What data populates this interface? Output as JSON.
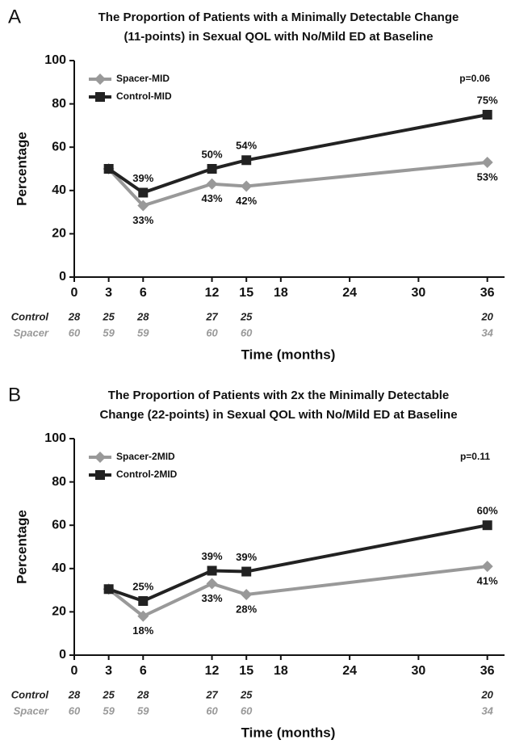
{
  "chart_data": [
    {
      "type": "line",
      "panel_label": "A",
      "title": [
        "The Proportion of Patients with a Minimally Detectable Change",
        "(11-points) in Sexual QOL with No/Mild ED at Baseline"
      ],
      "x_label": "Time (months)",
      "y_label": "Percentage",
      "annotation": "p=0.06",
      "x": [
        3,
        6,
        12,
        15,
        36
      ],
      "series": [
        {
          "name": "Spacer-MID",
          "color": "#999999",
          "marker": "diamond",
          "values": [
            50,
            33,
            43,
            42,
            53
          ],
          "value_labels": [
            null,
            "33%",
            "43%",
            "42%",
            "53%"
          ]
        },
        {
          "name": "Control-MID",
          "color": "#222222",
          "marker": "square",
          "values": [
            50,
            39,
            50,
            54,
            75
          ],
          "value_labels": [
            null,
            "39%",
            "50%",
            "54%",
            "75%"
          ]
        }
      ],
      "xlim": [
        0,
        37.5
      ],
      "xticks": [
        0,
        3,
        6,
        12,
        15,
        18,
        24,
        30,
        36
      ],
      "ylim": [
        0,
        100
      ],
      "yticks": [
        0,
        20,
        40,
        60,
        80,
        100
      ],
      "legend": "top-left",
      "risk_table": [
        {
          "name": "Control",
          "color": "#222222",
          "x": [
            0,
            3,
            6,
            12,
            15,
            36
          ],
          "counts": [
            28,
            25,
            28,
            27,
            25,
            20
          ]
        },
        {
          "name": "Spacer",
          "color": "#999999",
          "x": [
            0,
            3,
            6,
            12,
            15,
            36
          ],
          "counts": [
            60,
            59,
            59,
            60,
            60,
            34
          ]
        }
      ]
    },
    {
      "type": "line",
      "panel_label": "B",
      "title": [
        "The Proportion of Patients with 2x the Minimally Detectable",
        "Change (22-points) in Sexual QOL with No/Mild ED at Baseline"
      ],
      "x_label": "Time (months)",
      "y_label": "Percentage",
      "annotation": "p=0.11",
      "x": [
        3,
        6,
        12,
        15,
        36
      ],
      "series": [
        {
          "name": "Spacer-2MID",
          "color": "#999999",
          "marker": "diamond",
          "values": [
            30.5,
            18,
            33,
            28,
            41
          ],
          "value_labels": [
            null,
            "18%",
            "33%",
            "28%",
            "41%"
          ]
        },
        {
          "name": "Control-2MID",
          "color": "#222222",
          "marker": "square",
          "values": [
            30.5,
            25,
            39,
            38.6,
            60
          ],
          "value_labels": [
            null,
            "25%",
            "39%",
            "39%",
            "60%"
          ]
        }
      ],
      "xlim": [
        0,
        37.5
      ],
      "xticks": [
        0,
        3,
        6,
        12,
        15,
        18,
        24,
        30,
        36
      ],
      "ylim": [
        0,
        100
      ],
      "yticks": [
        0,
        20,
        40,
        60,
        80,
        100
      ],
      "legend": "top-left",
      "risk_table": [
        {
          "name": "Control",
          "color": "#222222",
          "x": [
            0,
            3,
            6,
            12,
            15,
            36
          ],
          "counts": [
            28,
            25,
            28,
            27,
            25,
            20
          ]
        },
        {
          "name": "Spacer",
          "color": "#999999",
          "x": [
            0,
            3,
            6,
            12,
            15,
            36
          ],
          "counts": [
            60,
            59,
            59,
            60,
            60,
            34
          ]
        }
      ]
    }
  ]
}
